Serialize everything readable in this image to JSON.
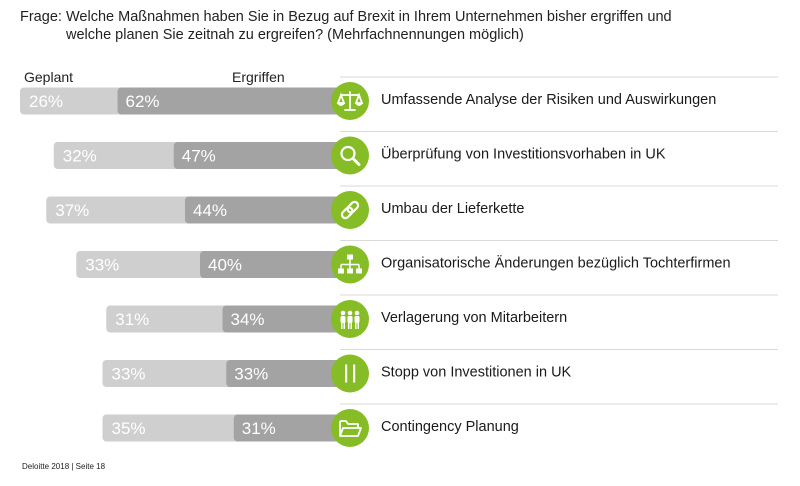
{
  "question": {
    "label": "Frage:",
    "line1": "Welche Maßnahmen haben Sie in Bezug auf Brexit in Ihrem Unternehmen bisher ergriffen und",
    "line2": "welche planen Sie zeitnah zu ergreifen? (Mehrfachnennungen möglich)"
  },
  "columns": {
    "planned": "Geplant",
    "taken": "Ergriffen"
  },
  "colors": {
    "planned": "#cfcfcf",
    "taken": "#a3a3a3",
    "label_text": "#ffffff",
    "icon_circle": "#86bc25",
    "icon_glyph": "#ffffff",
    "divider": "#d9d9d9"
  },
  "chart_data": {
    "type": "bar",
    "orientation": "horizontal",
    "stacked": true,
    "categories": [
      "Umfassende Analyse der Risiken und Auswirkungen",
      "Überprüfung von Investitionsvorhaben in UK",
      "Umbau der Lieferkette",
      "Organisatorische Änderungen bezüglich Tochterfirmen",
      "Verlagerung von Mitarbeitern",
      "Stopp von Investitionen in UK",
      "Contingency Planung"
    ],
    "icons": [
      "scales-icon",
      "magnifier-icon",
      "chain-link-icon",
      "org-chart-icon",
      "people-icon",
      "pause-icon",
      "folder-icon"
    ],
    "series": [
      {
        "name": "Ergriffen",
        "values": [
          62,
          47,
          44,
          40,
          34,
          33,
          31
        ],
        "labels": [
          "62%",
          "47%",
          "44%",
          "40%",
          "34%",
          "33%",
          "31%"
        ]
      },
      {
        "name": "Geplant",
        "values": [
          26,
          32,
          37,
          33,
          31,
          33,
          35
        ],
        "labels": [
          "26%",
          "32%",
          "37%",
          "33%",
          "31%",
          "33%",
          "35%"
        ]
      }
    ]
  },
  "footer": "Deloitte 2018 | Seite 18"
}
